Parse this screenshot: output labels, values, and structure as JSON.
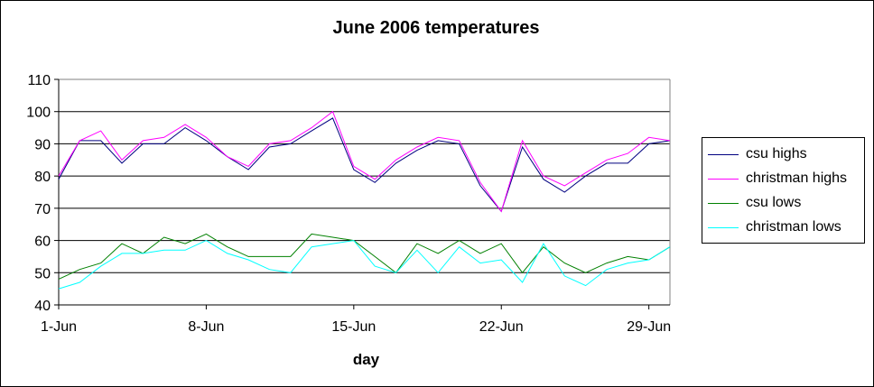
{
  "chart_data": {
    "type": "line",
    "title": "June 2006 temperatures",
    "xlabel": "day",
    "ylabel": "",
    "ylim": [
      40,
      110
    ],
    "yticks": [
      40,
      50,
      60,
      70,
      80,
      90,
      100,
      110
    ],
    "x_days": [
      1,
      2,
      3,
      4,
      5,
      6,
      7,
      8,
      9,
      10,
      11,
      12,
      13,
      14,
      15,
      16,
      17,
      18,
      19,
      20,
      21,
      22,
      23,
      24,
      25,
      26,
      27,
      28,
      29,
      30
    ],
    "xtick_labels": [
      {
        "day": 1,
        "label": "1-Jun"
      },
      {
        "day": 8,
        "label": "8-Jun"
      },
      {
        "day": 15,
        "label": "15-Jun"
      },
      {
        "day": 22,
        "label": "22-Jun"
      },
      {
        "day": 29,
        "label": "29-Jun"
      }
    ],
    "grid": "horizontal",
    "legend_position": "right",
    "series": [
      {
        "name": "csu highs",
        "color": "#000080",
        "values": [
          79,
          91,
          91,
          84,
          90,
          90,
          95,
          91,
          86,
          82,
          89,
          90,
          94,
          98,
          82,
          78,
          84,
          88,
          91,
          90,
          77,
          69,
          89,
          79,
          75,
          80,
          84,
          84,
          90,
          91
        ]
      },
      {
        "name": "christman highs",
        "color": "#ff00ff",
        "values": [
          80,
          91,
          94,
          85,
          91,
          92,
          96,
          92,
          86,
          83,
          90,
          91,
          95,
          100,
          83,
          79,
          85,
          89,
          92,
          91,
          78,
          69,
          91,
          80,
          77,
          81,
          85,
          87,
          92,
          91
        ]
      },
      {
        "name": "csu lows",
        "color": "#008000",
        "values": [
          48,
          51,
          53,
          59,
          56,
          61,
          59,
          62,
          58,
          55,
          55,
          55,
          62,
          61,
          60,
          55,
          50,
          59,
          56,
          60,
          56,
          59,
          50,
          58,
          53,
          50,
          53,
          55,
          54,
          58
        ]
      },
      {
        "name": "christman lows",
        "color": "#00ffff",
        "values": [
          45,
          47,
          52,
          56,
          56,
          57,
          57,
          60,
          56,
          54,
          51,
          50,
          58,
          59,
          60,
          52,
          50,
          57,
          50,
          58,
          53,
          54,
          47,
          59,
          49,
          46,
          51,
          53,
          54,
          58
        ]
      }
    ]
  }
}
